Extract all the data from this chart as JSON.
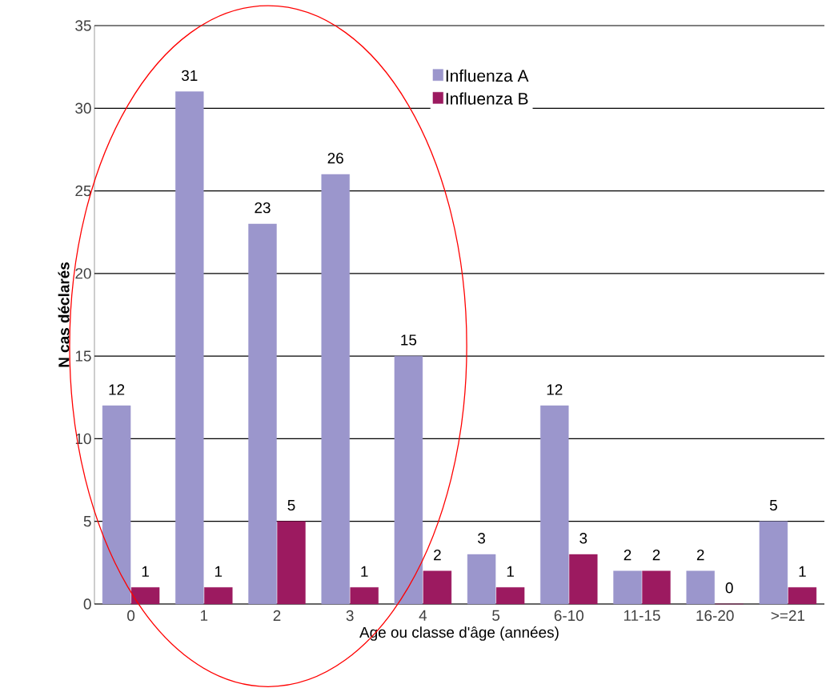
{
  "chart_data": {
    "type": "bar",
    "xlabel": "Age ou classe d'âge (années)",
    "ylabel": "N cas déclarés",
    "categories": [
      "0",
      "1",
      "2",
      "3",
      "4",
      "5",
      "6-10",
      "11-15",
      "16-20",
      ">=21"
    ],
    "series": [
      {
        "name": "Influenza A",
        "color": "#9b96cc",
        "values": [
          12,
          31,
          23,
          26,
          15,
          3,
          12,
          2,
          2,
          5
        ]
      },
      {
        "name": "Influenza B",
        "color": "#9c1a60",
        "values": [
          1,
          1,
          5,
          1,
          2,
          1,
          3,
          2,
          0,
          1
        ]
      }
    ],
    "ylim": [
      0,
      35
    ],
    "yticks": [
      0,
      5,
      10,
      15,
      20,
      25,
      30,
      35
    ],
    "grid": "y",
    "legend": "top",
    "data_labels": true
  }
}
